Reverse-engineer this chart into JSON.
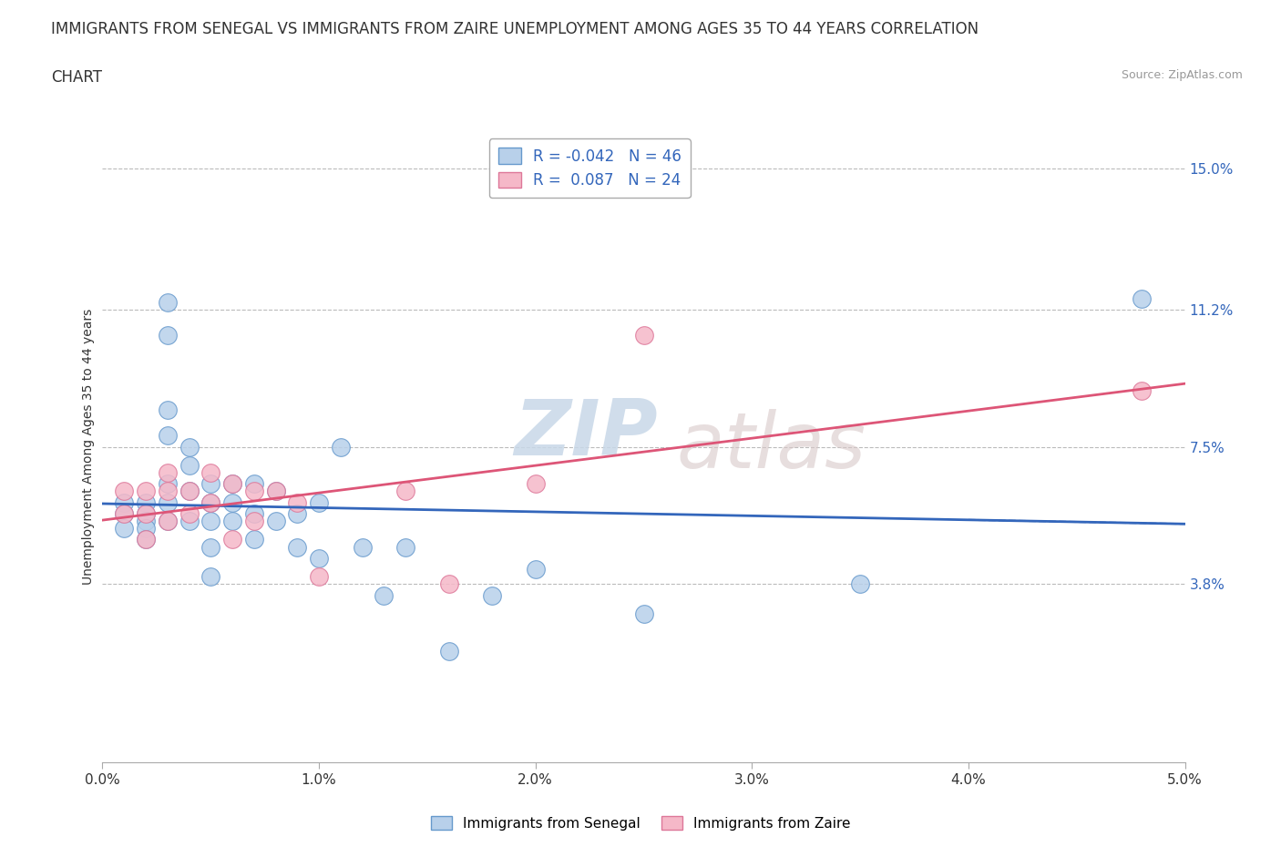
{
  "title_line1": "IMMIGRANTS FROM SENEGAL VS IMMIGRANTS FROM ZAIRE UNEMPLOYMENT AMONG AGES 35 TO 44 YEARS CORRELATION",
  "title_line2": "CHART",
  "source": "Source: ZipAtlas.com",
  "ylabel": "Unemployment Among Ages 35 to 44 years",
  "xlim": [
    0.0,
    0.05
  ],
  "ylim": [
    -0.01,
    0.16
  ],
  "xtick_labels": [
    "0.0%",
    "1.0%",
    "2.0%",
    "3.0%",
    "4.0%",
    "5.0%"
  ],
  "xtick_vals": [
    0.0,
    0.01,
    0.02,
    0.03,
    0.04,
    0.05
  ],
  "ytick_labels": [
    "3.8%",
    "7.5%",
    "11.2%",
    "15.0%"
  ],
  "ytick_vals": [
    0.038,
    0.075,
    0.112,
    0.15
  ],
  "watermark_zip": "ZIP",
  "watermark_atlas": "atlas",
  "senegal_color": "#b8d0ea",
  "zaire_color": "#f5b8c8",
  "senegal_edge_color": "#6699cc",
  "zaire_edge_color": "#dd7799",
  "senegal_line_color": "#3366bb",
  "zaire_line_color": "#dd5577",
  "senegal_R": -0.042,
  "senegal_N": 46,
  "zaire_R": 0.087,
  "zaire_N": 24,
  "legend_label_senegal": "Immigrants from Senegal",
  "legend_label_zaire": "Immigrants from Zaire",
  "senegal_x": [
    0.001,
    0.001,
    0.001,
    0.002,
    0.002,
    0.002,
    0.002,
    0.002,
    0.003,
    0.003,
    0.003,
    0.003,
    0.003,
    0.003,
    0.003,
    0.004,
    0.004,
    0.004,
    0.004,
    0.005,
    0.005,
    0.005,
    0.005,
    0.005,
    0.006,
    0.006,
    0.006,
    0.007,
    0.007,
    0.007,
    0.008,
    0.008,
    0.009,
    0.009,
    0.01,
    0.01,
    0.011,
    0.012,
    0.013,
    0.014,
    0.016,
    0.018,
    0.02,
    0.025,
    0.035,
    0.048
  ],
  "senegal_y": [
    0.06,
    0.057,
    0.053,
    0.06,
    0.057,
    0.055,
    0.053,
    0.05,
    0.114,
    0.105,
    0.085,
    0.078,
    0.065,
    0.06,
    0.055,
    0.075,
    0.07,
    0.063,
    0.055,
    0.065,
    0.06,
    0.055,
    0.048,
    0.04,
    0.065,
    0.06,
    0.055,
    0.065,
    0.057,
    0.05,
    0.063,
    0.055,
    0.057,
    0.048,
    0.06,
    0.045,
    0.075,
    0.048,
    0.035,
    0.048,
    0.02,
    0.035,
    0.042,
    0.03,
    0.038,
    0.115
  ],
  "zaire_x": [
    0.001,
    0.001,
    0.002,
    0.002,
    0.002,
    0.003,
    0.003,
    0.003,
    0.004,
    0.004,
    0.005,
    0.005,
    0.006,
    0.006,
    0.007,
    0.007,
    0.008,
    0.009,
    0.01,
    0.014,
    0.016,
    0.02,
    0.025,
    0.048
  ],
  "zaire_y": [
    0.063,
    0.057,
    0.063,
    0.057,
    0.05,
    0.068,
    0.063,
    0.055,
    0.063,
    0.057,
    0.068,
    0.06,
    0.065,
    0.05,
    0.063,
    0.055,
    0.063,
    0.06,
    0.04,
    0.063,
    0.038,
    0.065,
    0.105,
    0.09
  ],
  "background_color": "#ffffff",
  "grid_color": "#bbbbbb",
  "title_fontsize": 12,
  "axis_label_fontsize": 10,
  "tick_fontsize": 11
}
